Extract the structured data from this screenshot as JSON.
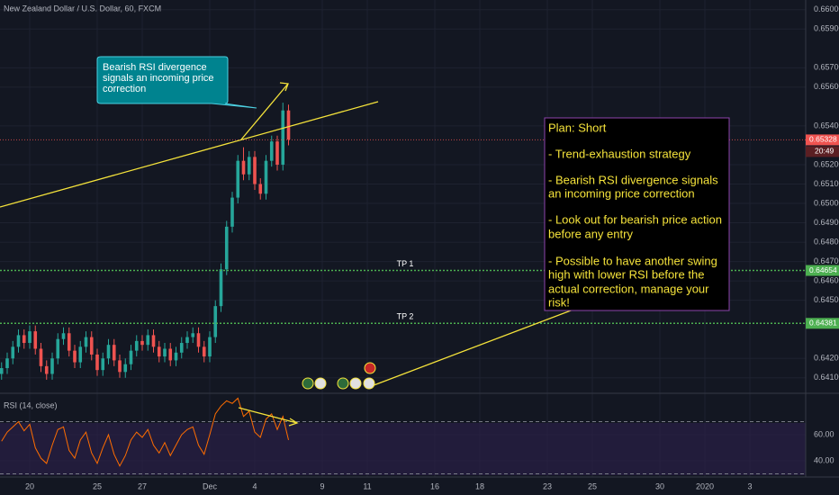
{
  "chart_data": {
    "type": "candlestick",
    "title": "New Zealand Dollar / U.S. Dollar, 60, FXCM",
    "x": [
      -1.25,
      -1,
      -0.75,
      -0.5,
      -0.25,
      0,
      0.25,
      0.5,
      0.75,
      1,
      1.25,
      1.5,
      1.75,
      2,
      2.25,
      2.5,
      2.75,
      3,
      3.25,
      3.5,
      3.75,
      4,
      4.25,
      4.5,
      4.75,
      5,
      5.25,
      5.5,
      5.75,
      6,
      6.25,
      6.5,
      6.75,
      7,
      7.25,
      7.5,
      7.75,
      8,
      8.25,
      8.5,
      8.75,
      9,
      9.25,
      9.5,
      9.75,
      10,
      10.25,
      10.5,
      10.75,
      11,
      11.25,
      11.5
    ],
    "open": [
      0.6412,
      0.6415,
      0.642,
      0.6426,
      0.6432,
      0.6428,
      0.6434,
      0.6425,
      0.6416,
      0.6412,
      0.642,
      0.643,
      0.6433,
      0.6424,
      0.6418,
      0.6426,
      0.6431,
      0.6422,
      0.6414,
      0.642,
      0.6427,
      0.6419,
      0.6413,
      0.6417,
      0.6424,
      0.6429,
      0.6427,
      0.6432,
      0.6426,
      0.6421,
      0.6425,
      0.6419,
      0.6423,
      0.6428,
      0.6431,
      0.6433,
      0.6426,
      0.6421,
      0.6431,
      0.6447,
      0.6466,
      0.6488,
      0.6503,
      0.6522,
      0.6515,
      0.6524,
      0.651,
      0.6505,
      0.6522,
      0.6532,
      0.652,
      0.6548
    ],
    "high": [
      0.6418,
      0.6423,
      0.6429,
      0.6435,
      0.6435,
      0.6437,
      0.6437,
      0.6428,
      0.6419,
      0.6423,
      0.6433,
      0.6436,
      0.6436,
      0.6427,
      0.6429,
      0.6434,
      0.6434,
      0.6425,
      0.6423,
      0.643,
      0.643,
      0.6422,
      0.642,
      0.6427,
      0.6432,
      0.6432,
      0.6435,
      0.6435,
      0.6429,
      0.6428,
      0.6428,
      0.6426,
      0.6431,
      0.6434,
      0.6436,
      0.6436,
      0.6429,
      0.6434,
      0.645,
      0.6469,
      0.6491,
      0.6506,
      0.6525,
      0.6529,
      0.6527,
      0.6527,
      0.6513,
      0.6525,
      0.6535,
      0.6535,
      0.6552,
      0.6551
    ],
    "low": [
      0.6409,
      0.6412,
      0.6417,
      0.6423,
      0.6425,
      0.6425,
      0.6422,
      0.6413,
      0.6409,
      0.6409,
      0.6417,
      0.6427,
      0.6421,
      0.6415,
      0.6415,
      0.6423,
      0.6419,
      0.6411,
      0.6411,
      0.6417,
      0.6416,
      0.641,
      0.641,
      0.6414,
      0.6421,
      0.6424,
      0.6424,
      0.6423,
      0.6418,
      0.6418,
      0.6416,
      0.6416,
      0.642,
      0.6425,
      0.6428,
      0.6423,
      0.6418,
      0.6418,
      0.6428,
      0.6444,
      0.6463,
      0.6485,
      0.65,
      0.6512,
      0.6512,
      0.6507,
      0.6502,
      0.6502,
      0.6519,
      0.6517,
      0.6517,
      0.653
    ],
    "close": [
      0.6415,
      0.642,
      0.6426,
      0.6432,
      0.6428,
      0.6434,
      0.6425,
      0.6416,
      0.6412,
      0.642,
      0.643,
      0.6433,
      0.6424,
      0.6418,
      0.6426,
      0.6431,
      0.6422,
      0.6414,
      0.642,
      0.6427,
      0.6419,
      0.6413,
      0.6417,
      0.6424,
      0.6429,
      0.6427,
      0.6432,
      0.6426,
      0.6421,
      0.6425,
      0.6419,
      0.6423,
      0.6428,
      0.6431,
      0.6433,
      0.6426,
      0.6421,
      0.6431,
      0.6447,
      0.6466,
      0.6488,
      0.6503,
      0.6522,
      0.6515,
      0.6524,
      0.651,
      0.6505,
      0.6522,
      0.6532,
      0.652,
      0.6548,
      0.6533
    ],
    "up_color": "#26a69a",
    "down_color": "#ef5350",
    "xlim": [
      -1.32,
      34.48
    ],
    "ylim": [
      0.6402,
      0.6605
    ],
    "grid": true,
    "xticks": [
      {
        "value": 0,
        "label": "20"
      },
      {
        "value": 3,
        "label": "25"
      },
      {
        "value": 5,
        "label": "27"
      },
      {
        "value": 8,
        "label": "Dec"
      },
      {
        "value": 10,
        "label": "4"
      },
      {
        "value": 13,
        "label": "9"
      },
      {
        "value": 15,
        "label": "11"
      },
      {
        "value": 18,
        "label": "16"
      },
      {
        "value": 20,
        "label": "18"
      },
      {
        "value": 23,
        "label": "23"
      },
      {
        "value": 25,
        "label": "25"
      },
      {
        "value": 28,
        "label": "30"
      },
      {
        "value": 30,
        "label": "2020"
      },
      {
        "value": 32,
        "label": "3"
      }
    ],
    "yticks": [
      {
        "value": 0.66,
        "label": "0.66000"
      },
      {
        "value": 0.659,
        "label": "0.65900"
      },
      {
        "value": 0.657,
        "label": "0.65700"
      },
      {
        "value": 0.656,
        "label": "0.65600"
      },
      {
        "value": 0.654,
        "label": "0.65400"
      },
      {
        "value": 0.652,
        "label": "0.65200"
      },
      {
        "value": 0.651,
        "label": "0.65100"
      },
      {
        "value": 0.65,
        "label": "0.65000"
      },
      {
        "value": 0.649,
        "label": "0.64900"
      },
      {
        "value": 0.648,
        "label": "0.64800"
      },
      {
        "value": 0.647,
        "label": "0.64700"
      },
      {
        "value": 0.646,
        "label": "0.64600"
      },
      {
        "value": 0.645,
        "label": "0.64500"
      },
      {
        "value": 0.642,
        "label": "0.64200"
      },
      {
        "value": 0.641,
        "label": "0.64100"
      }
    ],
    "last_price": 0.65328,
    "last_price_color": "#ef5350",
    "countdown": "20:49",
    "price_lines": [
      {
        "name": "TP 1",
        "value": 0.64654,
        "color": "#4caf50"
      },
      {
        "name": "TP 2",
        "value": 0.64381,
        "color": "#4caf50"
      }
    ],
    "callout": [
      "Bearish RSI divergence",
      "signals an incoming price",
      "correction"
    ],
    "plan": [
      "Plan: Short",
      "- Trend-exhaustion strategy",
      "- Bearish RSI divergence signals",
      "an incoming price correction",
      "- Look out for bearish price action",
      "before any entry",
      "- Possible to have another swing",
      "high with lower RSI before the",
      "actual correction, manage your",
      "risk!"
    ],
    "indicator": {
      "name": "RSI (14, close)",
      "color": "#ff6d00",
      "ylim": [
        27.6,
        89.7
      ],
      "yticks": [
        {
          "value": 60,
          "label": "60.00"
        },
        {
          "value": 40,
          "label": "40.00"
        }
      ],
      "bands": [
        70,
        30
      ],
      "values": [
        55,
        62,
        66,
        70,
        63,
        68,
        50,
        42,
        38,
        52,
        64,
        66,
        48,
        42,
        56,
        62,
        46,
        38,
        50,
        60,
        45,
        36,
        44,
        56,
        62,
        58,
        64,
        52,
        46,
        54,
        44,
        52,
        60,
        64,
        66,
        52,
        45,
        60,
        76,
        82,
        86,
        84,
        88,
        74,
        78,
        62,
        58,
        72,
        76,
        64,
        74,
        56
      ]
    }
  }
}
